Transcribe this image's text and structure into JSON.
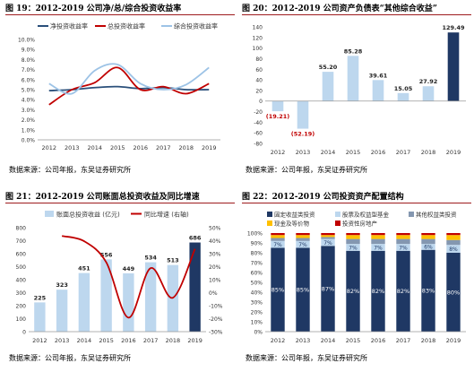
{
  "panels": [
    {
      "title": "图 19：2012-2019 公司净/总/综合投资收益率",
      "source": "数据来源：公司年报，东吴证券研究所"
    },
    {
      "title": "图 20：2012-2019 公司资产负债表“其他综合收益”",
      "source": "数据来源：公司年报，东吴证券研究所"
    },
    {
      "title": "图 21：2012-2019 公司账面总投资收益及同比增速",
      "source": "数据来源：公司年报，东吴证券研究所"
    },
    {
      "title": "图 22：2012-2019 公司投资资产配置结构",
      "source": "数据来源：公司年报，东吴证券研究所"
    }
  ],
  "chart_data": [
    {
      "type": "line",
      "categories": [
        "2012",
        "2013",
        "2014",
        "2015",
        "2016",
        "2017",
        "2018",
        "2019"
      ],
      "series": [
        {
          "name": "净投资收益率",
          "color": "#2a4f7a",
          "values": [
            4.9,
            5.0,
            5.2,
            5.3,
            5.1,
            5.2,
            5.0,
            5.0
          ]
        },
        {
          "name": "总投资收益率",
          "color": "#c00000",
          "values": [
            3.5,
            5.0,
            5.7,
            7.2,
            5.0,
            5.3,
            4.6,
            5.6
          ]
        },
        {
          "name": "综合投资收益率",
          "color": "#9dc3e6",
          "values": [
            5.6,
            4.6,
            6.9,
            7.5,
            5.6,
            5.0,
            5.5,
            7.2
          ]
        }
      ],
      "y_ticks": [
        "0.0%",
        "1.0%",
        "2.0%",
        "3.0%",
        "4.0%",
        "5.0%",
        "6.0%",
        "7.0%",
        "8.0%",
        "9.0%",
        "10.0%"
      ],
      "ylim": [
        0,
        10
      ],
      "legend": "top"
    },
    {
      "type": "bar",
      "categories": [
        "2012",
        "2013",
        "2014",
        "2015",
        "2016",
        "2017",
        "2018",
        "2019"
      ],
      "values": [
        -19.21,
        -52.19,
        55.2,
        85.28,
        39.61,
        15.05,
        27.92,
        129.49
      ],
      "labels": [
        "(19.21)",
        "(52.19)",
        "55.20",
        "85.28",
        "39.61",
        "15.05",
        "27.92",
        "129.49"
      ],
      "y_ticks": [
        "-80",
        "-60",
        "-40",
        "-20",
        "0",
        "20",
        "40",
        "60",
        "80",
        "100",
        "120",
        "140"
      ],
      "ylim": [
        -80,
        140
      ],
      "bar_color": "#bdd7ee",
      "highlight_color": "#1f3864",
      "negative_label_color": "#c00000"
    },
    {
      "type": "bar",
      "categories": [
        "2012",
        "2013",
        "2014",
        "2015",
        "2016",
        "2017",
        "2018",
        "2019"
      ],
      "series": [
        {
          "name": "账面总投资收益 (亿元)",
          "values": [
            225,
            323,
            451,
            556,
            449,
            534,
            513,
            686
          ],
          "color": "#bdd7ee",
          "highlight_color": "#1f3864"
        },
        {
          "name": "同比增速 (右轴)",
          "values": [
            null,
            43.6,
            39.6,
            23.3,
            -19.2,
            18.9,
            -3.9,
            33.7
          ],
          "color": "#c00000"
        }
      ],
      "labels": [
        "225",
        "323",
        "451",
        "556",
        "449",
        "534",
        "513",
        "686"
      ],
      "y_ticks": [
        "0",
        "100",
        "200",
        "300",
        "400",
        "500",
        "600",
        "700",
        "800"
      ],
      "ylim": [
        0,
        800
      ],
      "y2_ticks": [
        "-30%",
        "-20%",
        "-10%",
        "0%",
        "10%",
        "20%",
        "30%",
        "40%",
        "50%"
      ],
      "y2lim": [
        -30,
        50
      ],
      "legend": "top"
    },
    {
      "type": "bar",
      "stacked": true,
      "categories": [
        "2012",
        "2013",
        "2014",
        "2015",
        "2016",
        "2017",
        "2018",
        "2019"
      ],
      "series": [
        {
          "name": "固定收益类投资",
          "color": "#1f3864",
          "values": [
            85,
            85,
            87,
            82,
            82,
            82,
            83,
            80
          ],
          "labels": [
            "85%",
            "85%",
            "87%",
            "82%",
            "82%",
            "82%",
            "83%",
            "80%"
          ]
        },
        {
          "name": "股票及权益型基金",
          "color": "#bdd7ee",
          "values": [
            7,
            7,
            7,
            7,
            7,
            7,
            6,
            8
          ],
          "labels": [
            "7%",
            "7%",
            "7%",
            "7%",
            "7%",
            "7%",
            "6%",
            "8%"
          ]
        },
        {
          "name": "其他权益类投资",
          "color": "#8497b0",
          "values": [
            3,
            3,
            2,
            5,
            5,
            5,
            5,
            5
          ]
        },
        {
          "name": "现金及等价物",
          "color": "#ffc000",
          "values": [
            3,
            3,
            2,
            4,
            4,
            4,
            4,
            5
          ]
        },
        {
          "name": "投资性房地产",
          "color": "#c00000",
          "values": [
            2,
            2,
            2,
            2,
            2,
            2,
            2,
            2
          ]
        }
      ],
      "y_ticks": [
        "0%",
        "10%",
        "20%",
        "30%",
        "40%",
        "50%",
        "60%",
        "70%",
        "80%",
        "90%",
        "100%"
      ],
      "ylim": [
        0,
        100
      ],
      "legend": "top"
    }
  ]
}
